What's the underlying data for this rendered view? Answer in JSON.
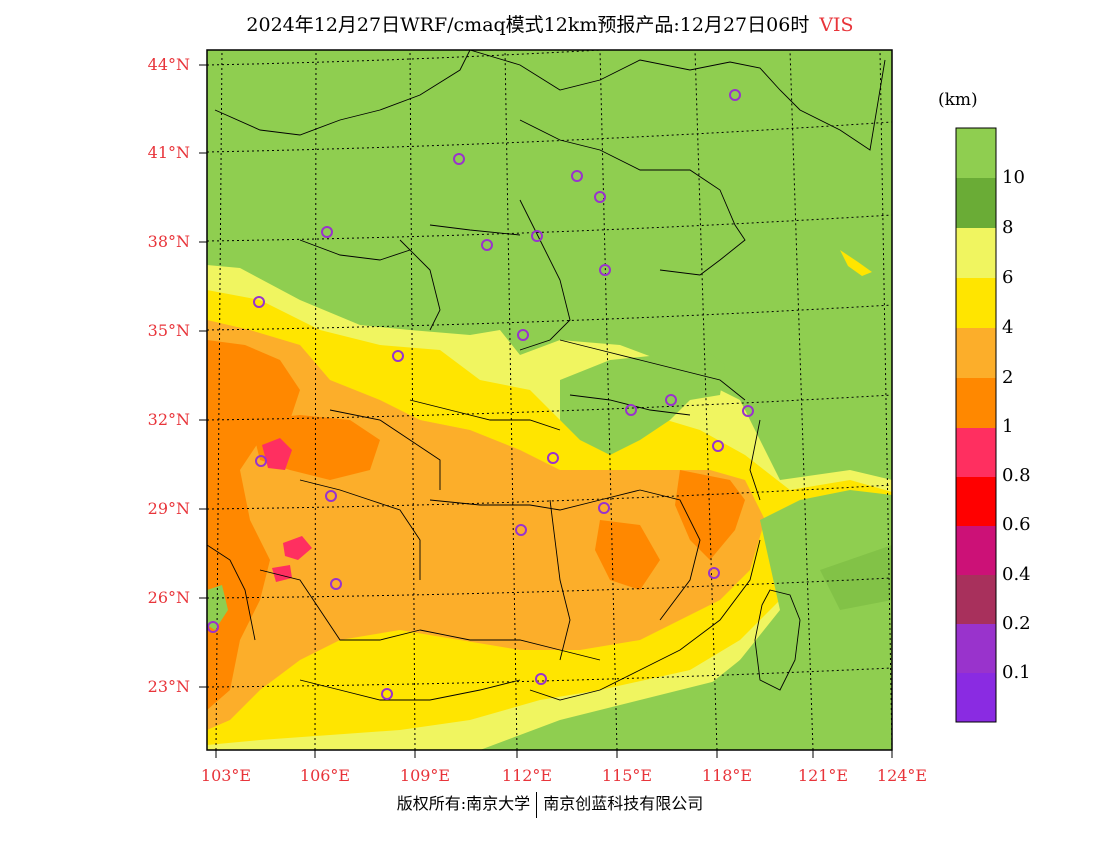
{
  "title": {
    "text": "2024年12月27日WRF/cmaq模式12km预报产品:12月27日06时",
    "variable": "VIS"
  },
  "axes": {
    "lat_labels": [
      "44°N",
      "41°N",
      "38°N",
      "35°N",
      "32°N",
      "29°N",
      "26°N",
      "23°N"
    ],
    "lon_labels": [
      "103°E",
      "106°E",
      "109°E",
      "112°E",
      "115°E",
      "118°E",
      "121°E",
      "124°E"
    ]
  },
  "colorbar": {
    "unit": "(km)",
    "levels": [
      "10",
      "8",
      "6",
      "4",
      "2",
      "1",
      "0.8",
      "0.6",
      "0.4",
      "0.2",
      "0.1"
    ],
    "colors": [
      "#8fce50",
      "#6aac36",
      "#f0f560",
      "#ffe500",
      "#fcae2a",
      "#ff8800",
      "#ff2f60",
      "#ff0000",
      "#cc1177",
      "#a8305c",
      "#9933cc",
      "#8a2be2"
    ]
  },
  "footer": {
    "left": "版权所有:南京大学",
    "right": "南京创蓝科技有限公司"
  }
}
